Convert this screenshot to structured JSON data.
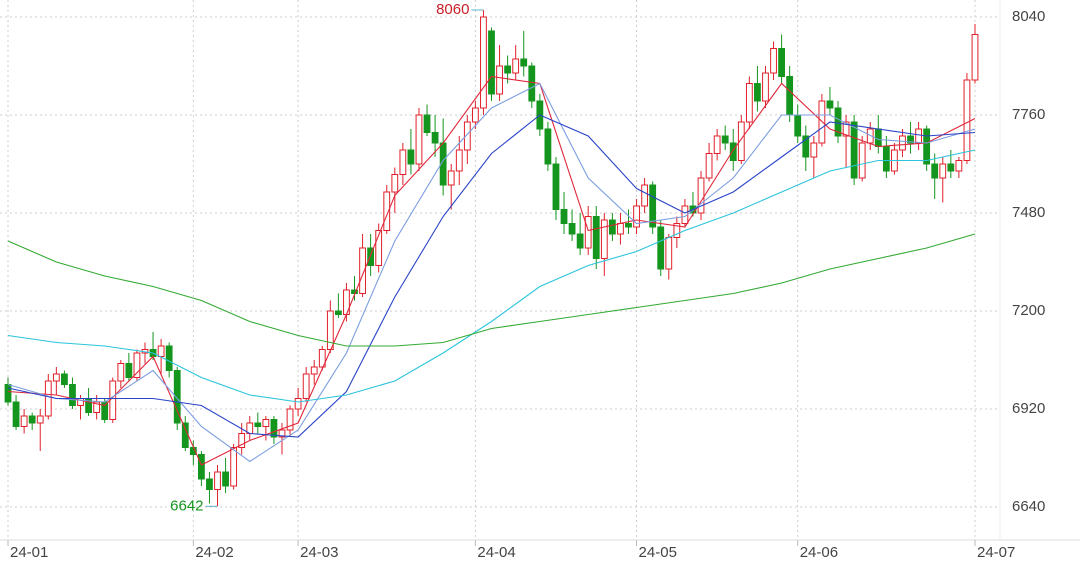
{
  "chart_data": {
    "type": "candlestick",
    "up_color": "#e0202a",
    "down_color": "#14961e",
    "categories": [
      "24-01",
      null,
      null,
      null,
      null,
      null,
      null,
      null,
      null,
      null,
      null,
      null,
      null,
      null,
      null,
      null,
      null,
      null,
      null,
      null,
      null,
      null,
      null,
      "24-02",
      null,
      null,
      null,
      null,
      null,
      null,
      null,
      null,
      null,
      null,
      null,
      null,
      "24-03",
      null,
      null,
      null,
      null,
      null,
      null,
      null,
      null,
      null,
      null,
      null,
      null,
      null,
      null,
      null,
      null,
      null,
      null,
      null,
      null,
      null,
      "24-04",
      null,
      null,
      null,
      null,
      null,
      null,
      null,
      null,
      null,
      null,
      null,
      null,
      null,
      null,
      null,
      null,
      null,
      null,
      null,
      "24-05",
      null,
      null,
      null,
      null,
      null,
      null,
      null,
      null,
      null,
      null,
      null,
      null,
      null,
      null,
      null,
      null,
      null,
      null,
      null,
      "24-06",
      null,
      null,
      null,
      null,
      null,
      null,
      null,
      null,
      null,
      null,
      null,
      null,
      null,
      null,
      null,
      null,
      null,
      null,
      null,
      null,
      null,
      "24-07"
    ],
    "ohlc": [
      [
        6990,
        7010,
        6930,
        6940
      ],
      [
        6940,
        6960,
        6860,
        6870
      ],
      [
        6870,
        6920,
        6850,
        6900
      ],
      [
        6900,
        6910,
        6860,
        6880
      ],
      [
        6880,
        6920,
        6800,
        6900
      ],
      [
        6900,
        7020,
        6890,
        7000
      ],
      [
        7000,
        7040,
        6960,
        7020
      ],
      [
        7020,
        7030,
        6980,
        6990
      ],
      [
        6990,
        7010,
        6920,
        6930
      ],
      [
        6930,
        6960,
        6890,
        6950
      ],
      [
        6950,
        6980,
        6900,
        6910
      ],
      [
        6910,
        6960,
        6890,
        6940
      ],
      [
        6940,
        6950,
        6880,
        6890
      ],
      [
        6890,
        7010,
        6880,
        7000
      ],
      [
        7000,
        7060,
        6980,
        7050
      ],
      [
        7050,
        7080,
        7000,
        7010
      ],
      [
        7010,
        7090,
        7000,
        7080
      ],
      [
        7080,
        7110,
        7050,
        7090
      ],
      [
        7090,
        7140,
        7060,
        7070
      ],
      [
        7070,
        7120,
        7020,
        7100
      ],
      [
        7100,
        7110,
        7010,
        7030
      ],
      [
        7030,
        7040,
        6860,
        6880
      ],
      [
        6880,
        6900,
        6800,
        6810
      ],
      [
        6810,
        6830,
        6760,
        6790
      ],
      [
        6790,
        6800,
        6700,
        6720
      ],
      [
        6720,
        6740,
        6650,
        6690
      ],
      [
        6690,
        6760,
        6642,
        6740
      ],
      [
        6740,
        6780,
        6680,
        6700
      ],
      [
        6700,
        6820,
        6690,
        6810
      ],
      [
        6810,
        6880,
        6790,
        6850
      ],
      [
        6850,
        6900,
        6830,
        6880
      ],
      [
        6880,
        6910,
        6850,
        6870
      ],
      [
        6870,
        6900,
        6830,
        6890
      ],
      [
        6890,
        6900,
        6820,
        6840
      ],
      [
        6840,
        6880,
        6790,
        6860
      ],
      [
        6860,
        6930,
        6840,
        6920
      ],
      [
        6920,
        6980,
        6900,
        6950
      ],
      [
        6950,
        7040,
        6940,
        7020
      ],
      [
        7020,
        7060,
        6990,
        7040
      ],
      [
        7040,
        7100,
        7030,
        7090
      ],
      [
        7090,
        7230,
        7080,
        7200
      ],
      [
        7200,
        7250,
        7180,
        7190
      ],
      [
        7190,
        7280,
        7170,
        7260
      ],
      [
        7260,
        7300,
        7230,
        7250
      ],
      [
        7250,
        7420,
        7240,
        7380
      ],
      [
        7380,
        7420,
        7300,
        7330
      ],
      [
        7330,
        7450,
        7310,
        7430
      ],
      [
        7430,
        7560,
        7420,
        7540
      ],
      [
        7540,
        7610,
        7480,
        7590
      ],
      [
        7590,
        7680,
        7560,
        7660
      ],
      [
        7660,
        7720,
        7590,
        7620
      ],
      [
        7620,
        7780,
        7600,
        7760
      ],
      [
        7760,
        7790,
        7700,
        7710
      ],
      [
        7710,
        7760,
        7640,
        7680
      ],
      [
        7680,
        7750,
        7530,
        7560
      ],
      [
        7560,
        7620,
        7490,
        7600
      ],
      [
        7600,
        7700,
        7560,
        7660
      ],
      [
        7660,
        7760,
        7620,
        7740
      ],
      [
        7740,
        7800,
        7720,
        7780
      ],
      [
        7780,
        8060,
        7760,
        8040
      ],
      [
        8000,
        8010,
        7800,
        7820
      ],
      [
        7820,
        7960,
        7800,
        7900
      ],
      [
        7900,
        7930,
        7850,
        7880
      ],
      [
        7880,
        7960,
        7860,
        7920
      ],
      [
        7920,
        8000,
        7870,
        7900
      ],
      [
        7900,
        7910,
        7780,
        7800
      ],
      [
        7800,
        7820,
        7700,
        7720
      ],
      [
        7720,
        7740,
        7600,
        7620
      ],
      [
        7620,
        7640,
        7460,
        7490
      ],
      [
        7490,
        7540,
        7420,
        7450
      ],
      [
        7450,
        7490,
        7400,
        7420
      ],
      [
        7420,
        7480,
        7360,
        7380
      ],
      [
        7380,
        7500,
        7360,
        7470
      ],
      [
        7470,
        7500,
        7320,
        7350
      ],
      [
        7350,
        7480,
        7300,
        7460
      ],
      [
        7460,
        7480,
        7400,
        7420
      ],
      [
        7420,
        7480,
        7390,
        7450
      ],
      [
        7450,
        7490,
        7420,
        7440
      ],
      [
        7440,
        7520,
        7420,
        7500
      ],
      [
        7500,
        7580,
        7480,
        7560
      ],
      [
        7560,
        7570,
        7420,
        7440
      ],
      [
        7440,
        7460,
        7300,
        7320
      ],
      [
        7320,
        7420,
        7290,
        7410
      ],
      [
        7410,
        7470,
        7380,
        7450
      ],
      [
        7450,
        7520,
        7440,
        7500
      ],
      [
        7500,
        7540,
        7470,
        7480
      ],
      [
        7480,
        7600,
        7460,
        7580
      ],
      [
        7580,
        7680,
        7570,
        7650
      ],
      [
        7650,
        7720,
        7630,
        7700
      ],
      [
        7700,
        7730,
        7660,
        7680
      ],
      [
        7680,
        7720,
        7600,
        7630
      ],
      [
        7630,
        7760,
        7620,
        7740
      ],
      [
        7740,
        7870,
        7720,
        7850
      ],
      [
        7850,
        7900,
        7770,
        7800
      ],
      [
        7800,
        7900,
        7780,
        7880
      ],
      [
        7880,
        7970,
        7860,
        7950
      ],
      [
        7950,
        7990,
        7850,
        7870
      ],
      [
        7870,
        7900,
        7740,
        7760
      ],
      [
        7760,
        7790,
        7680,
        7700
      ],
      [
        7700,
        7730,
        7600,
        7640
      ],
      [
        7640,
        7700,
        7580,
        7680
      ],
      [
        7680,
        7820,
        7670,
        7800
      ],
      [
        7800,
        7840,
        7760,
        7780
      ],
      [
        7780,
        7800,
        7680,
        7700
      ],
      [
        7700,
        7760,
        7610,
        7740
      ],
      [
        7740,
        7760,
        7560,
        7580
      ],
      [
        7580,
        7700,
        7570,
        7680
      ],
      [
        7680,
        7740,
        7660,
        7720
      ],
      [
        7720,
        7760,
        7650,
        7670
      ],
      [
        7670,
        7700,
        7580,
        7600
      ],
      [
        7600,
        7680,
        7590,
        7660
      ],
      [
        7660,
        7720,
        7640,
        7700
      ],
      [
        7700,
        7740,
        7650,
        7680
      ],
      [
        7680,
        7740,
        7660,
        7720
      ],
      [
        7720,
        7730,
        7600,
        7620
      ],
      [
        7620,
        7650,
        7520,
        7580
      ],
      [
        7580,
        7640,
        7510,
        7620
      ],
      [
        7620,
        7660,
        7580,
        7600
      ],
      [
        7600,
        7640,
        7580,
        7630
      ],
      [
        7630,
        7880,
        7620,
        7860
      ],
      [
        7860,
        8020,
        7850,
        7990
      ]
    ],
    "series": [
      {
        "color": "#e0263a",
        "x": [
          0,
          6,
          12,
          18,
          24,
          30,
          36,
          42,
          48,
          54,
          60,
          66,
          72,
          78,
          84,
          90,
          96,
          102,
          108,
          114,
          120
        ],
        "values": [
          6970,
          6960,
          6930,
          7070,
          6760,
          6830,
          6880,
          7190,
          7530,
          7680,
          7870,
          7850,
          7430,
          7460,
          7440,
          7660,
          7850,
          7720,
          7670,
          7680,
          7750
        ]
      },
      {
        "color": "#7c9ee0",
        "x": [
          0,
          6,
          12,
          18,
          24,
          30,
          36,
          42,
          48,
          54,
          60,
          66,
          72,
          78,
          84,
          90,
          96,
          102,
          108,
          114,
          120
        ],
        "values": [
          6990,
          6950,
          6940,
          7030,
          6870,
          6770,
          6860,
          7080,
          7400,
          7630,
          7780,
          7850,
          7580,
          7450,
          7470,
          7580,
          7760,
          7760,
          7690,
          7680,
          7720
        ]
      },
      {
        "color": "#2a44c8",
        "x": [
          0,
          6,
          12,
          18,
          24,
          30,
          36,
          42,
          48,
          54,
          60,
          66,
          72,
          78,
          84,
          90,
          96,
          102,
          108,
          114,
          120
        ],
        "values": [
          6980,
          6950,
          6950,
          6950,
          6930,
          6850,
          6840,
          6970,
          7240,
          7470,
          7650,
          7760,
          7700,
          7550,
          7480,
          7540,
          7640,
          7740,
          7720,
          7700,
          7710
        ]
      },
      {
        "color": "#2cc4dc",
        "x": [
          0,
          6,
          12,
          18,
          24,
          30,
          36,
          42,
          48,
          54,
          60,
          66,
          72,
          78,
          84,
          90,
          96,
          102,
          108,
          114,
          120
        ],
        "values": [
          7130,
          7110,
          7100,
          7080,
          7010,
          6960,
          6940,
          6960,
          7000,
          7080,
          7170,
          7270,
          7330,
          7370,
          7430,
          7480,
          7540,
          7600,
          7630,
          7630,
          7660
        ]
      },
      {
        "color": "#33aa33",
        "x": [
          0,
          6,
          12,
          18,
          24,
          30,
          36,
          42,
          48,
          54,
          60,
          66,
          72,
          78,
          84,
          90,
          96,
          102,
          108,
          114,
          120
        ],
        "values": [
          7400,
          7340,
          7300,
          7270,
          7230,
          7170,
          7130,
          7100,
          7100,
          7110,
          7150,
          7170,
          7190,
          7210,
          7230,
          7250,
          7280,
          7320,
          7350,
          7380,
          7420
        ]
      }
    ],
    "annotations": [
      {
        "value": 8060,
        "color": "#c81e28"
      },
      {
        "value": 6642,
        "color": "#14961e"
      }
    ],
    "ylim": [
      6640,
      8040
    ],
    "yticks": [
      6640,
      6920,
      7200,
      7480,
      7760,
      8040
    ],
    "grid": true
  }
}
